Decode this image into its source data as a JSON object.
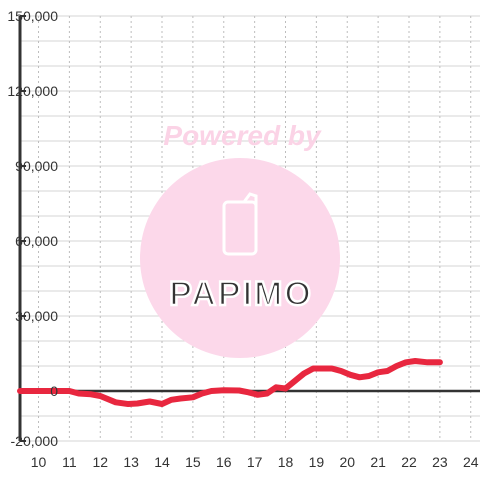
{
  "chart_data": {
    "type": "line",
    "title": "",
    "xlabel": "",
    "ylabel": "",
    "xlim": [
      9.4,
      24.3
    ],
    "ylim": [
      -20000,
      150000
    ],
    "x_ticks": [
      10,
      11,
      12,
      13,
      14,
      15,
      16,
      17,
      18,
      19,
      20,
      21,
      22,
      23,
      24
    ],
    "y_ticks": [
      -20000,
      0,
      30000,
      60000,
      90000,
      120000,
      150000
    ],
    "x_tick_labels": [
      "10",
      "11",
      "12",
      "13",
      "14",
      "15",
      "16",
      "17",
      "18",
      "19",
      "20",
      "21",
      "22",
      "23",
      "24"
    ],
    "y_tick_labels": [
      "-20,000",
      "0",
      "30,000",
      "60,000",
      "90,000",
      "120,000",
      "150,000"
    ],
    "grid": true,
    "series": [
      {
        "color": "#e8273f",
        "x": [
          9.4,
          11.0,
          11.3,
          11.7,
          12.0,
          12.5,
          12.9,
          13.2,
          13.6,
          14.0,
          14.3,
          14.6,
          15.0,
          15.3,
          15.6,
          16.0,
          16.5,
          16.8,
          17.1,
          17.4,
          17.7,
          18.0,
          18.3,
          18.6,
          18.9,
          19.2,
          19.5,
          19.8,
          20.1,
          20.4,
          20.7,
          21.0,
          21.3,
          21.6,
          21.9,
          22.2,
          22.6,
          23.0
        ],
        "y": [
          0,
          0,
          -1000,
          -1300,
          -2000,
          -4500,
          -5200,
          -5000,
          -4200,
          -5200,
          -3500,
          -3000,
          -2500,
          -1000,
          0,
          300,
          200,
          -500,
          -1500,
          -1000,
          1500,
          1000,
          4000,
          7000,
          9000,
          9000,
          9000,
          8000,
          6500,
          5500,
          6000,
          7500,
          8000,
          10000,
          11500,
          12000,
          11500,
          11500
        ]
      }
    ],
    "colors": {
      "line": "#e8273f",
      "axis": "#333333",
      "grid": "#cccccc",
      "watermark": "#fbd3e6"
    }
  },
  "watermark": {
    "tagline": "Powered by",
    "brand": "PAPIMO"
  }
}
